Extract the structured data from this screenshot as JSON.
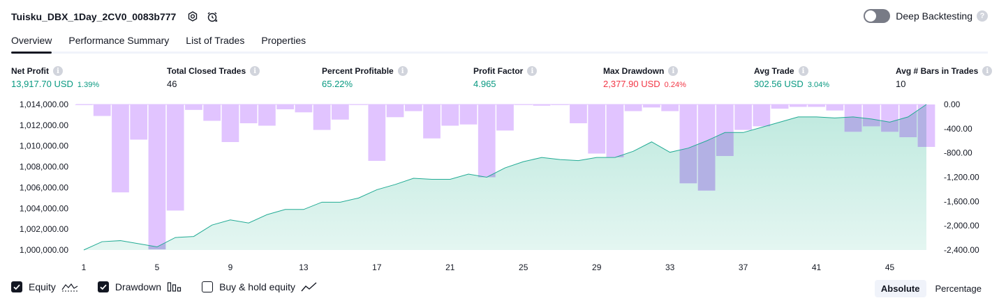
{
  "header": {
    "title": "Tuisku_DBX_1Day_2CV0_0083b777",
    "deep_backtesting_label": "Deep Backtesting",
    "deep_backtesting_on": false,
    "icons": [
      "settings-icon",
      "alert-clock-icon",
      "help-icon"
    ]
  },
  "tabs": [
    {
      "label": "Overview",
      "active": true
    },
    {
      "label": "Performance Summary",
      "active": false
    },
    {
      "label": "List of Trades",
      "active": false
    },
    {
      "label": "Properties",
      "active": false
    }
  ],
  "metrics": {
    "net_profit": {
      "label": "Net Profit",
      "value": "13,917.70 USD",
      "sub": "1.39%"
    },
    "total_closed_trades": {
      "label": "Total Closed Trades",
      "value": "46"
    },
    "percent_profitable": {
      "label": "Percent Profitable",
      "value": "65.22%"
    },
    "profit_factor": {
      "label": "Profit Factor",
      "value": "4.965"
    },
    "max_drawdown": {
      "label": "Max Drawdown",
      "value": "2,377.90 USD",
      "sub": "0.24%"
    },
    "avg_trade": {
      "label": "Avg Trade",
      "value": "302.56 USD",
      "sub": "3.04%"
    },
    "avg_bars": {
      "label": "Avg # Bars in Trades",
      "value": "10"
    }
  },
  "chart_data": {
    "type": "area",
    "x_ticks": [
      1,
      5,
      9,
      13,
      17,
      21,
      25,
      29,
      33,
      37,
      41,
      45
    ],
    "left_ticks": [
      "1,014,000.00",
      "1,012,000.00",
      "1,010,000.00",
      "1,008,000.00",
      "1,006,000.00",
      "1,004,000.00",
      "1,002,000.00",
      "1,000,000.00"
    ],
    "right_ticks": [
      "0.00",
      "-400.00",
      "-800.00",
      "-1,200.00",
      "-1,600.00",
      "-2,000.00",
      "-2,400.00"
    ],
    "left_ylim": [
      1000000,
      1014000
    ],
    "right_ylim": [
      -2400,
      0
    ],
    "x_range": [
      1,
      47
    ],
    "colors": {
      "equity_line": "#22ab94",
      "equity_fill": "#b2e5d8",
      "drawdown": "#e1c4ff",
      "drawdown_overlap": "#b3b1e4"
    },
    "series": [
      {
        "name": "Equity",
        "x": [
          1,
          2,
          3,
          4,
          5,
          6,
          7,
          8,
          9,
          10,
          11,
          12,
          13,
          14,
          15,
          16,
          17,
          18,
          19,
          20,
          21,
          22,
          23,
          24,
          25,
          26,
          27,
          28,
          29,
          30,
          31,
          32,
          33,
          34,
          35,
          36,
          37,
          38,
          39,
          40,
          41,
          42,
          43,
          44,
          45,
          46,
          47
        ],
        "values": [
          1000000,
          1000800,
          1000900,
          1000600,
          1000300,
          1001200,
          1001300,
          1002400,
          1002900,
          1002600,
          1003400,
          1003900,
          1003900,
          1004600,
          1004600,
          1005000,
          1005800,
          1006300,
          1006900,
          1006800,
          1006800,
          1007300,
          1007000,
          1007900,
          1008500,
          1008900,
          1008700,
          1008600,
          1008900,
          1008900,
          1009500,
          1010400,
          1009400,
          1009800,
          1010500,
          1011300,
          1011300,
          1011800,
          1012300,
          1012800,
          1012800,
          1012700,
          1012800,
          1012600,
          1012300,
          1012800,
          1014000
        ]
      },
      {
        "name": "Drawdown",
        "x": [
          1,
          2,
          3,
          4,
          5,
          6,
          7,
          8,
          9,
          10,
          11,
          12,
          13,
          14,
          15,
          16,
          17,
          18,
          19,
          20,
          21,
          22,
          23,
          24,
          25,
          26,
          27,
          28,
          29,
          30,
          31,
          32,
          33,
          34,
          35,
          36,
          37,
          38,
          39,
          40,
          41,
          42,
          43,
          44,
          45,
          46,
          47
        ],
        "values": [
          -10,
          -190,
          -1450,
          -580,
          -2390,
          -1750,
          -90,
          -270,
          -620,
          -310,
          -350,
          -80,
          -130,
          -420,
          -250,
          0,
          -930,
          -210,
          -110,
          -560,
          -350,
          -330,
          -1200,
          -430,
          0,
          -20,
          -10,
          -310,
          -810,
          -870,
          -110,
          -50,
          -110,
          -1300,
          -1420,
          -850,
          -420,
          -360,
          -70,
          -40,
          -40,
          -100,
          -450,
          -360,
          -450,
          -540,
          -700
        ]
      }
    ]
  },
  "legend": {
    "equity_label": "Equity",
    "equity_checked": true,
    "drawdown_label": "Drawdown",
    "drawdown_checked": true,
    "buyhold_label": "Buy & hold equity",
    "buyhold_checked": false
  },
  "modes": {
    "absolute": "Absolute",
    "percentage": "Percentage",
    "active": "Absolute"
  }
}
